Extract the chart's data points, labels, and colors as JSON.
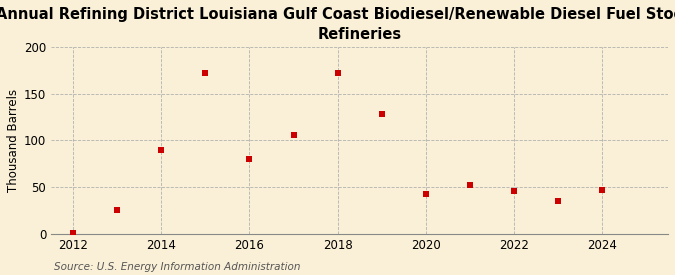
{
  "title": "Annual Refining District Louisiana Gulf Coast Biodiesel/Renewable Diesel Fuel Stocks at\nRefineries",
  "ylabel": "Thousand Barrels",
  "source": "Source: U.S. Energy Information Administration",
  "years": [
    2012,
    2013,
    2014,
    2015,
    2016,
    2017,
    2018,
    2019,
    2020,
    2021,
    2022,
    2023,
    2024
  ],
  "values": [
    1,
    25,
    90,
    172,
    80,
    106,
    172,
    128,
    43,
    52,
    46,
    35,
    47
  ],
  "marker_color": "#cc0000",
  "marker": "s",
  "marker_size": 25,
  "background_color": "#faf0d7",
  "grid_color": "#aaaaaa",
  "ylim": [
    0,
    200
  ],
  "yticks": [
    0,
    50,
    100,
    150,
    200
  ],
  "xlim": [
    2011.5,
    2025.5
  ],
  "xticks": [
    2012,
    2014,
    2016,
    2018,
    2020,
    2022,
    2024
  ],
  "title_fontsize": 10.5,
  "axis_fontsize": 8.5,
  "source_fontsize": 7.5
}
